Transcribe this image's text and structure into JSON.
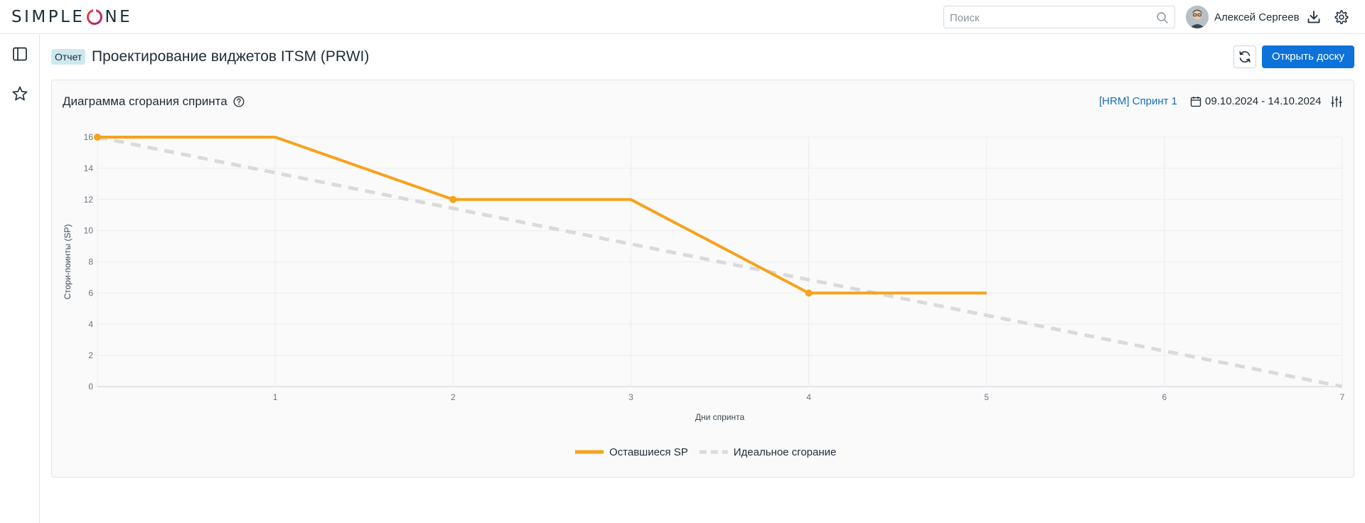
{
  "header": {
    "logo_text_left": "SIMPLE",
    "logo_text_right": "NE",
    "search_placeholder": "Поиск",
    "user_name": "Алексей Сергеев",
    "icons": [
      "search-icon",
      "download-icon",
      "gear-icon"
    ]
  },
  "sidebar": {
    "icons": [
      "panel-toggle-icon",
      "star-icon"
    ]
  },
  "page": {
    "badge": "Отчет",
    "title": "Проектирование виджетов ITSM (PRWI)",
    "open_board_label": "Открыть доску"
  },
  "widget": {
    "title": "Диаграмма сгорания спринта",
    "sprint_link": "[HRM] Спринт 1",
    "date_range": "09.10.2024 - 14.10.2024"
  },
  "chart_data": {
    "type": "line",
    "xlabel": "Дни спринта",
    "ylabel": "Стори-поинты (SP)",
    "xlim": [
      0,
      7
    ],
    "ylim": [
      0,
      16
    ],
    "x_ticks": [
      1,
      2,
      3,
      4,
      5,
      6,
      7
    ],
    "y_ticks": [
      0,
      2,
      4,
      6,
      8,
      10,
      12,
      14,
      16
    ],
    "grid": true,
    "legend_position": "bottom-center",
    "series": [
      {
        "name": "Оставшиеся SP",
        "color": "#f7a21b",
        "style": "solid",
        "points": [
          [
            0,
            16
          ],
          [
            1,
            16
          ],
          [
            2,
            12
          ],
          [
            3,
            12
          ],
          [
            4,
            6
          ],
          [
            5,
            6
          ]
        ],
        "markers_at": [
          0,
          2,
          4
        ]
      },
      {
        "name": "Идеальное сгорание",
        "color": "#d9dadc",
        "style": "dashed",
        "points": [
          [
            0,
            16
          ],
          [
            7,
            0
          ]
        ],
        "markers_at": []
      }
    ]
  }
}
